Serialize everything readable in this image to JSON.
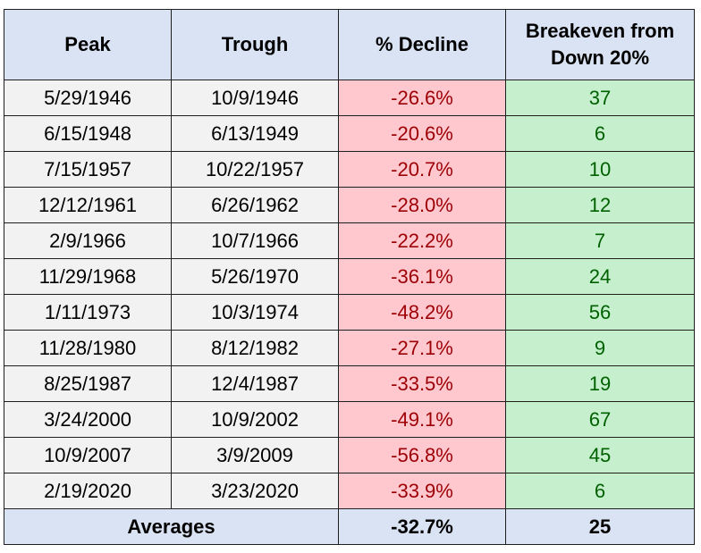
{
  "headers": {
    "peak": "Peak",
    "trough": "Trough",
    "decline": "% Decline",
    "breakeven_line1": "Breakeven from",
    "breakeven_line2": "Down 20%"
  },
  "rows": [
    {
      "peak": "5/29/1946",
      "trough": "10/9/1946",
      "decline": "-26.6%",
      "breakeven": "37"
    },
    {
      "peak": "6/15/1948",
      "trough": "6/13/1949",
      "decline": "-20.6%",
      "breakeven": "6"
    },
    {
      "peak": "7/15/1957",
      "trough": "10/22/1957",
      "decline": "-20.7%",
      "breakeven": "10"
    },
    {
      "peak": "12/12/1961",
      "trough": "6/26/1962",
      "decline": "-28.0%",
      "breakeven": "12"
    },
    {
      "peak": "2/9/1966",
      "trough": "10/7/1966",
      "decline": "-22.2%",
      "breakeven": "7"
    },
    {
      "peak": "11/29/1968",
      "trough": "5/26/1970",
      "decline": "-36.1%",
      "breakeven": "24"
    },
    {
      "peak": "1/11/1973",
      "trough": "10/3/1974",
      "decline": "-48.2%",
      "breakeven": "56"
    },
    {
      "peak": "11/28/1980",
      "trough": "8/12/1982",
      "decline": "-27.1%",
      "breakeven": "9"
    },
    {
      "peak": "8/25/1987",
      "trough": "12/4/1987",
      "decline": "-33.5%",
      "breakeven": "19"
    },
    {
      "peak": "3/24/2000",
      "trough": "10/9/2002",
      "decline": "-49.1%",
      "breakeven": "67"
    },
    {
      "peak": "10/9/2007",
      "trough": "3/9/2009",
      "decline": "-56.8%",
      "breakeven": "45"
    },
    {
      "peak": "2/19/2020",
      "trough": "3/23/2020",
      "decline": "-33.9%",
      "breakeven": "6"
    }
  ],
  "footer": {
    "label": "Averages",
    "decline": "-32.7%",
    "breakeven": "25"
  },
  "colors": {
    "header_bg": "#dae3f3",
    "date_bg": "#f2f2f2",
    "decline_bg": "#ffc7ce",
    "decline_text": "#9c0006",
    "breakeven_bg": "#c6efce",
    "breakeven_text": "#006100"
  }
}
